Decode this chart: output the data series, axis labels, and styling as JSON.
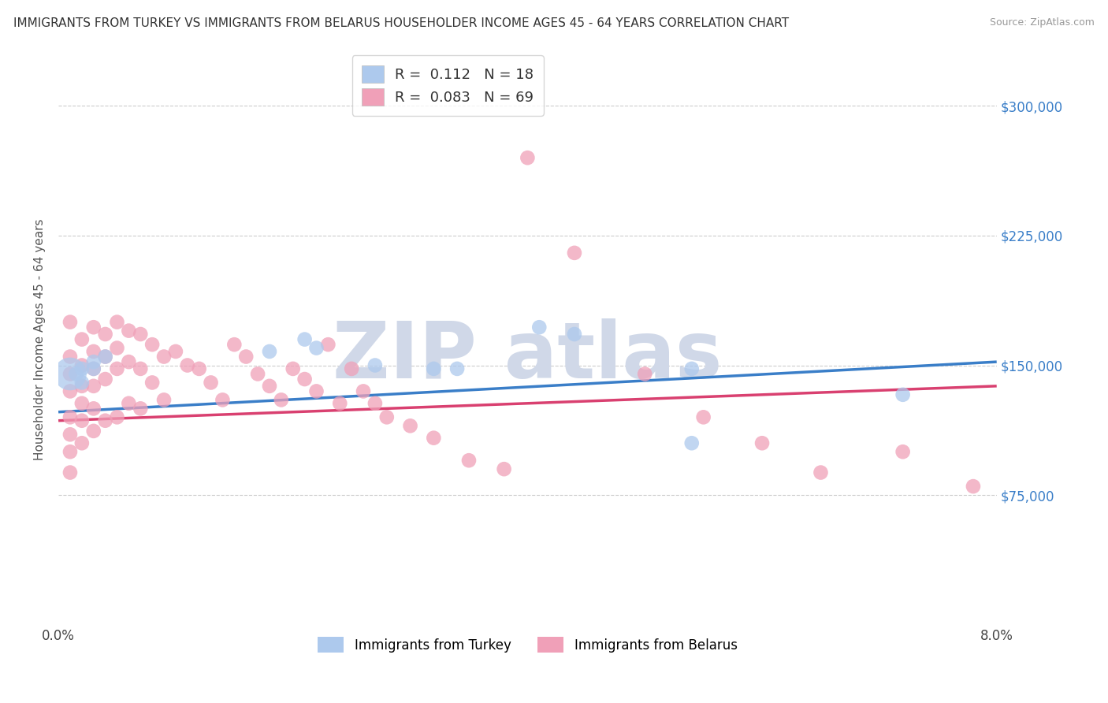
{
  "title": "IMMIGRANTS FROM TURKEY VS IMMIGRANTS FROM BELARUS HOUSEHOLDER INCOME AGES 45 - 64 YEARS CORRELATION CHART",
  "source": "Source: ZipAtlas.com",
  "ylabel": "Householder Income Ages 45 - 64 years",
  "xlim": [
    0.0,
    0.08
  ],
  "ylim": [
    0,
    330000
  ],
  "yticks": [
    75000,
    150000,
    225000,
    300000
  ],
  "ytick_labels": [
    "$75,000",
    "$150,000",
    "$225,000",
    "$300,000"
  ],
  "xtick_labels": [
    "0.0%",
    "",
    "",
    "",
    "",
    "",
    "",
    "",
    "8.0%"
  ],
  "turkey_R": 0.112,
  "turkey_N": 18,
  "belarus_R": 0.083,
  "belarus_N": 69,
  "turkey_color": "#adc9ed",
  "turkey_line_color": "#3a7ec8",
  "belarus_color": "#f0a0b8",
  "belarus_line_color": "#d94070",
  "background_color": "#ffffff",
  "grid_color": "#cccccc",
  "turkey_x": [
    0.001,
    0.0015,
    0.002,
    0.002,
    0.003,
    0.003,
    0.004,
    0.018,
    0.021,
    0.022,
    0.027,
    0.032,
    0.034,
    0.041,
    0.044,
    0.054,
    0.054,
    0.072
  ],
  "turkey_y": [
    145000,
    145000,
    148000,
    140000,
    152000,
    148000,
    155000,
    158000,
    165000,
    160000,
    150000,
    148000,
    148000,
    172000,
    168000,
    148000,
    105000,
    133000
  ],
  "turkey_large_idx": 0,
  "belarus_x": [
    0.001,
    0.001,
    0.001,
    0.001,
    0.001,
    0.001,
    0.001,
    0.001,
    0.002,
    0.002,
    0.002,
    0.002,
    0.002,
    0.002,
    0.003,
    0.003,
    0.003,
    0.003,
    0.003,
    0.003,
    0.004,
    0.004,
    0.004,
    0.004,
    0.005,
    0.005,
    0.005,
    0.005,
    0.006,
    0.006,
    0.006,
    0.007,
    0.007,
    0.007,
    0.008,
    0.008,
    0.009,
    0.009,
    0.01,
    0.011,
    0.012,
    0.013,
    0.014,
    0.015,
    0.016,
    0.017,
    0.018,
    0.019,
    0.02,
    0.021,
    0.022,
    0.023,
    0.024,
    0.025,
    0.026,
    0.027,
    0.028,
    0.03,
    0.032,
    0.035,
    0.038,
    0.04,
    0.044,
    0.05,
    0.055,
    0.06,
    0.065,
    0.072,
    0.078
  ],
  "belarus_y": [
    175000,
    155000,
    145000,
    135000,
    120000,
    110000,
    100000,
    88000,
    165000,
    150000,
    138000,
    128000,
    118000,
    105000,
    172000,
    158000,
    148000,
    138000,
    125000,
    112000,
    168000,
    155000,
    142000,
    118000,
    175000,
    160000,
    148000,
    120000,
    170000,
    152000,
    128000,
    168000,
    148000,
    125000,
    162000,
    140000,
    155000,
    130000,
    158000,
    150000,
    148000,
    140000,
    130000,
    162000,
    155000,
    145000,
    138000,
    130000,
    148000,
    142000,
    135000,
    162000,
    128000,
    148000,
    135000,
    128000,
    120000,
    115000,
    108000,
    95000,
    90000,
    270000,
    215000,
    145000,
    120000,
    105000,
    88000,
    100000,
    80000
  ]
}
